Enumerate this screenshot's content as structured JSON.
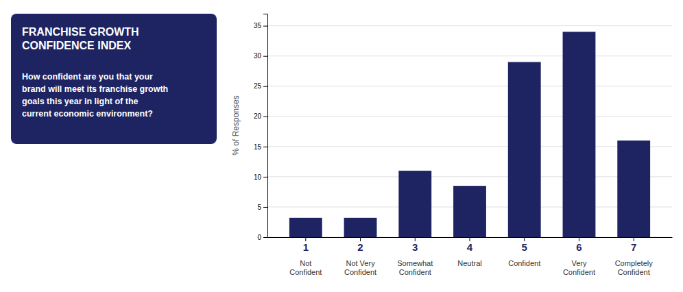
{
  "chart_data": {
    "type": "bar",
    "title": "FRANCHISE GROWTH\nCONFIDENCE INDEX",
    "subtitle": "How confident are you that your\nbrand will meet its franchise growth\ngoals this year in light of the\ncurrent economic environment?",
    "ylabel": "% of Responses",
    "categories": [
      "1",
      "2",
      "3",
      "4",
      "5",
      "6",
      "7"
    ],
    "annotations": [
      "Not\nConfident",
      "Not Very\nConfident",
      "Somewhat\nConfident",
      "Neutral",
      "Confident",
      "Very\nConfident",
      "Completely\nConfident"
    ],
    "values": [
      3.2,
      3.2,
      11.0,
      8.5,
      29.0,
      34.0,
      16.0
    ],
    "color": "#1e2462",
    "ylim": [
      0,
      37
    ],
    "yticks": [
      0,
      5,
      10,
      15,
      20,
      25,
      30,
      35
    ],
    "grid": true
  }
}
